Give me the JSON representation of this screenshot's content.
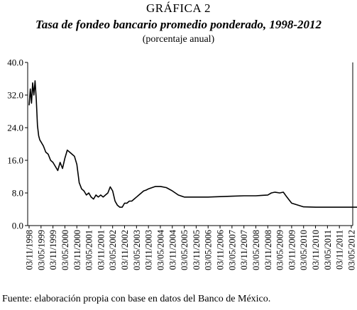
{
  "header": {
    "figure_label": "GRÁFICA 2",
    "title": "Tasa de fondeo bancario promedio ponderado, 1998-2012",
    "subtitle": "(porcentaje anual)"
  },
  "footer": {
    "source": "Fuente: elaboración propia con base en datos del Banco de México."
  },
  "chart_data": {
    "type": "line",
    "title": "Tasa de fondeo bancario promedio ponderado, 1998-2012",
    "subtitle": "(porcentaje anual)",
    "xlabel": "",
    "ylabel": "",
    "ylim": [
      0,
      40
    ],
    "yticks": [
      "0.0",
      "8.0",
      "16.0",
      "24.0",
      "32.0",
      "40.0"
    ],
    "x_tick_labels": [
      "03/11/1998",
      "03/05/1999",
      "03/11/1999",
      "03/05/2000",
      "03/11/2000",
      "03/05/2001",
      "03/11/2001",
      "03/05/2002",
      "03/11/2002",
      "03/05/2003",
      "03/11/2003",
      "03/05/2004",
      "03/11/2004",
      "03/05/2005",
      "03/11/2005",
      "03/05/2006",
      "03/11/2006",
      "03/05/2007",
      "03/11/2007",
      "03/05/2008",
      "03/11/2008",
      "03/05/2009",
      "03/11/2009",
      "03/05/2010",
      "03/11/2010",
      "03/05/2011",
      "03/11/2011",
      "03/05/2012"
    ],
    "grid": false,
    "legend": "none",
    "line_color": "#000000",
    "series": [
      {
        "x": [
          0.0,
          0.1,
          0.2,
          0.3,
          0.4,
          0.5,
          0.6,
          0.7,
          0.8,
          0.9,
          1.0,
          1.2,
          1.4,
          1.6,
          1.8,
          2.0,
          2.2,
          2.4,
          2.6,
          2.8,
          3.0,
          3.2,
          3.4,
          3.6,
          3.8,
          4.0,
          4.2,
          4.4,
          4.6,
          4.8,
          5.0,
          5.2,
          5.4,
          5.6,
          5.8,
          6.0,
          6.2,
          6.4,
          6.6,
          6.8,
          7.0,
          7.2,
          7.4,
          7.6,
          7.8,
          8.0,
          8.2,
          8.4,
          8.6,
          8.8,
          9.0,
          9.2,
          9.4,
          9.6,
          9.8,
          10.0,
          10.3,
          10.6,
          11.0,
          11.5,
          12.0,
          12.5,
          13.0,
          13.5,
          14.0,
          14.5,
          15.0,
          16.0,
          17.0,
          18.0,
          19.0,
          19.5,
          20.0,
          20.3,
          20.6,
          21.0,
          21.3,
          21.6,
          22.0,
          23.0,
          24.0,
          25.0,
          25.5,
          26.0,
          27.0,
          28.0
        ],
        "y": [
          29.5,
          33.5,
          30.0,
          35.0,
          32.0,
          35.5,
          31.0,
          24.5,
          22.0,
          21.0,
          20.5,
          19.5,
          18.0,
          17.5,
          16.0,
          15.5,
          14.5,
          13.5,
          15.5,
          14.0,
          16.5,
          18.5,
          18.0,
          17.5,
          17.0,
          15.0,
          10.5,
          9.0,
          8.5,
          7.5,
          8.0,
          7.0,
          6.5,
          7.5,
          7.0,
          7.5,
          7.0,
          7.5,
          8.0,
          9.5,
          8.5,
          6.0,
          5.0,
          4.5,
          4.5,
          5.5,
          5.5,
          6.0,
          6.0,
          6.5,
          7.0,
          7.5,
          8.0,
          8.5,
          8.7,
          9.0,
          9.3,
          9.6,
          9.6,
          9.3,
          8.5,
          7.5,
          7.0,
          7.0,
          7.0,
          7.0,
          7.0,
          7.1,
          7.2,
          7.3,
          7.3,
          7.4,
          7.5,
          8.0,
          8.2,
          8.0,
          8.2,
          7.0,
          5.5,
          4.6,
          4.5,
          4.5,
          4.5,
          4.5,
          4.5,
          4.5
        ]
      }
    ]
  }
}
